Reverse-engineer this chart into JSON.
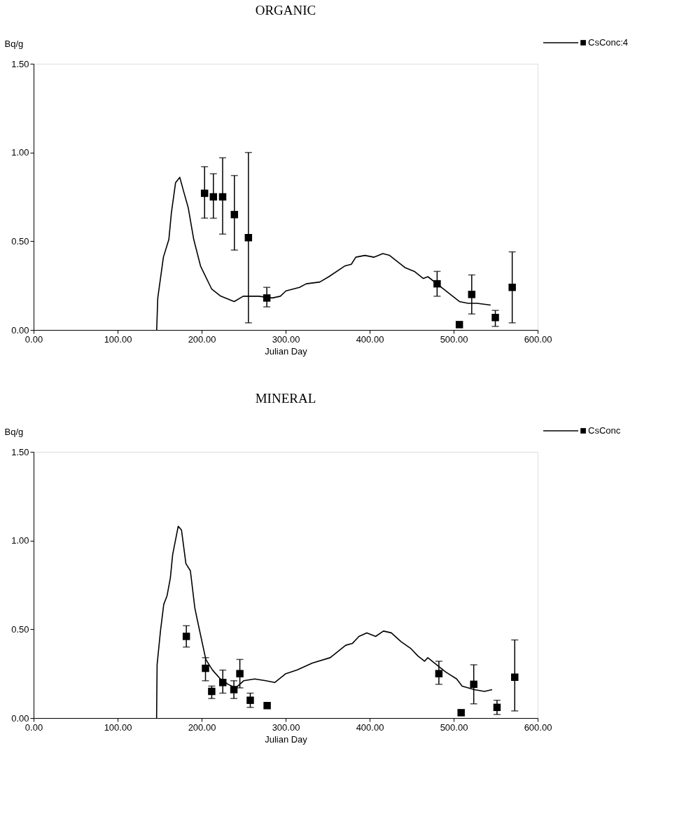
{
  "chart_data": [
    {
      "type": "scatter",
      "title": "ORGANIC",
      "xlabel": "Julian Day",
      "ylabel": "Bq/g",
      "legend": "top right",
      "line_style": "solid",
      "grid": false,
      "xlim": [
        0,
        600
      ],
      "ylim": [
        0,
        1.5
      ],
      "xticks": [
        {
          "value": 0,
          "label": "0.00"
        },
        {
          "value": 100,
          "label": "100.00"
        },
        {
          "value": 200,
          "label": "200.00"
        },
        {
          "value": 300,
          "label": "300.00"
        },
        {
          "value": 400,
          "label": "400.00"
        },
        {
          "value": 500,
          "label": "500.00"
        },
        {
          "value": 600,
          "label": "600.00"
        }
      ],
      "yticks": [
        {
          "value": 0,
          "label": "0.00"
        },
        {
          "value": 0.5,
          "label": "0.50"
        },
        {
          "value": 1,
          "label": "1.00"
        },
        {
          "value": 1.5,
          "label": "1.50"
        }
      ],
      "series": [
        {
          "type": "line",
          "color": "#000000",
          "x": [
            146.5,
            147.8,
            154.5,
            161,
            164,
            169,
            174,
            178.6,
            184,
            190.6,
            198.7,
            212,
            222.8,
            238.8,
            249.5,
            268,
            284,
            293.7,
            300.4,
            316.5,
            324.5,
            340.6,
            351.4,
            370.2,
            378.2,
            383.5,
            394.3,
            405,
            415.7,
            423.7,
            442.5,
            453.2,
            463.9,
            469.3,
            488,
            506.8,
            517.2,
            527.9,
            544
          ],
          "values": [
            0,
            0.18,
            0.41,
            0.51,
            0.66,
            0.83,
            0.86,
            0.78,
            0.69,
            0.51,
            0.36,
            0.23,
            0.19,
            0.16,
            0.19,
            0.19,
            0.18,
            0.19,
            0.22,
            0.24,
            0.26,
            0.27,
            0.3,
            0.36,
            0.37,
            0.41,
            0.42,
            0.41,
            0.43,
            0.42,
            0.35,
            0.33,
            0.29,
            0.3,
            0.23,
            0.16,
            0.15,
            0.15,
            0.14
          ]
        },
        {
          "name": "CsConc:4",
          "color": "#000000",
          "marker": "square",
          "x": [
            203.5,
            214,
            225,
            239,
            255.7,
            277.6,
            480.3,
            506.8,
            521.5,
            549.6,
            569.7
          ],
          "values": [
            0.77,
            0.75,
            0.75,
            0.65,
            0.52,
            0.18,
            0.26,
            0.03,
            0.2,
            0.07,
            0.24
          ],
          "errors": [
            [
              0.63,
              0.92
            ],
            [
              0.63,
              0.88
            ],
            [
              0.54,
              0.97
            ],
            [
              0.45,
              0.87
            ],
            [
              0.04,
              1.0
            ],
            [
              0.13,
              0.24
            ],
            [
              0.19,
              0.33
            ],
            null,
            [
              0.09,
              0.31
            ],
            [
              0.02,
              0.11
            ],
            [
              0.04,
              0.44
            ]
          ]
        }
      ]
    },
    {
      "type": "scatter",
      "title": "MINERAL",
      "xlabel": "Julian Day",
      "ylabel": "Bq/g",
      "legend": "top right",
      "line_style": "solid",
      "grid": false,
      "xlim": [
        0,
        600
      ],
      "ylim": [
        0,
        1.5
      ],
      "xticks": [
        {
          "value": 0,
          "label": "0.00"
        },
        {
          "value": 100,
          "label": "100.00"
        },
        {
          "value": 200,
          "label": "200.00"
        },
        {
          "value": 300,
          "label": "300.00"
        },
        {
          "value": 400,
          "label": "400.00"
        },
        {
          "value": 500,
          "label": "500.00"
        },
        {
          "value": 600,
          "label": "600.00"
        }
      ],
      "yticks": [
        {
          "value": 0,
          "label": "0.00"
        },
        {
          "value": 0.5,
          "label": "0.50"
        },
        {
          "value": 1,
          "label": "1.00"
        },
        {
          "value": 1.5,
          "label": "1.50"
        }
      ],
      "series": [
        {
          "type": "line",
          "color": "#000000",
          "x": [
            146.4,
            147,
            151,
            154.9,
            158.9,
            162.8,
            165.5,
            172.1,
            176,
            181.3,
            186.6,
            191.9,
            195.9,
            205,
            213,
            222.3,
            231.5,
            240.7,
            250,
            263.2,
            276.4,
            287,
            300.2,
            313.4,
            331.9,
            353,
            371.5,
            379.4,
            387.3,
            396.6,
            407.1,
            416.4,
            425.7,
            437.5,
            449.4,
            457.4,
            465.3,
            469.2,
            490.3,
            503.6,
            510.1,
            524.7,
            536.6,
            545.8
          ],
          "values": [
            0,
            0.3,
            0.49,
            0.64,
            0.69,
            0.79,
            0.92,
            1.08,
            1.06,
            0.87,
            0.83,
            0.62,
            0.53,
            0.33,
            0.27,
            0.22,
            0.19,
            0.17,
            0.21,
            0.22,
            0.21,
            0.2,
            0.25,
            0.27,
            0.31,
            0.34,
            0.41,
            0.42,
            0.46,
            0.48,
            0.46,
            0.49,
            0.48,
            0.43,
            0.39,
            0.35,
            0.32,
            0.34,
            0.26,
            0.22,
            0.18,
            0.16,
            0.15,
            0.16
          ]
        },
        {
          "name": "CsConc",
          "color": "#000000",
          "marker": "square",
          "x": [
            181.8,
            204.6,
            212,
            225.2,
            238.4,
            245.5,
            257.9,
            278,
            482.4,
            508.9,
            523.9,
            551.6,
            572.7
          ],
          "values": [
            0.46,
            0.28,
            0.15,
            0.2,
            0.16,
            0.25,
            0.1,
            0.07,
            0.25,
            0.03,
            0.19,
            0.06,
            0.23
          ],
          "errors": [
            [
              0.4,
              0.52
            ],
            [
              0.21,
              0.34
            ],
            [
              0.11,
              0.18
            ],
            [
              0.14,
              0.27
            ],
            [
              0.11,
              0.21
            ],
            [
              0.17,
              0.33
            ],
            [
              0.06,
              0.14
            ],
            null,
            [
              0.19,
              0.32
            ],
            null,
            [
              0.08,
              0.3
            ],
            [
              0.02,
              0.1
            ],
            [
              0.04,
              0.44
            ]
          ]
        }
      ]
    }
  ]
}
